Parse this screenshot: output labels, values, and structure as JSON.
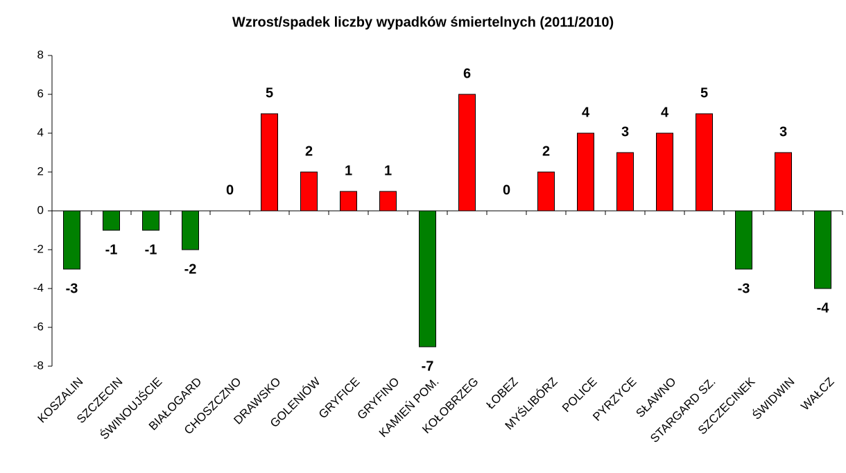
{
  "chart_data": {
    "type": "bar",
    "title": "Wzrost/spadek liczby wypadków śmiertelnych (2011/2010)",
    "categories": [
      "KOSZALIN",
      "SZCZECIN",
      "ŚWINOUJŚCIE",
      "BIAŁOGARD",
      "CHOSZCZNO",
      "DRAWSKO",
      "GOLENIÓW",
      "GRYFICE",
      "GRYFINO",
      "KAMIEŃ POM.",
      "KOŁOBRZEG",
      "ŁOBEZ",
      "MYŚLIBÓRZ",
      "POLICE",
      "PYRZYCE",
      "SŁAWNO",
      "STARGARD SZ.",
      "SZCZECINEK",
      "ŚWIDWIN",
      "WAŁCZ"
    ],
    "values": [
      -3,
      -1,
      -1,
      -2,
      0,
      5,
      2,
      1,
      1,
      -7,
      6,
      0,
      2,
      4,
      3,
      4,
      5,
      -3,
      3,
      -4
    ],
    "positive_color": "#ff0000",
    "negative_color": "#008000",
    "ylim": [
      -8,
      8
    ],
    "yticks": [
      -8,
      -6,
      -4,
      -2,
      0,
      2,
      4,
      6,
      8
    ],
    "grid": false
  }
}
